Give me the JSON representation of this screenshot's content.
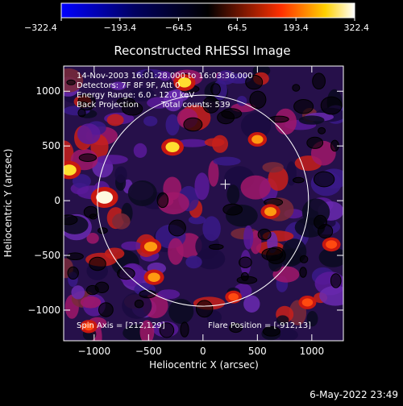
{
  "chart_data": {
    "type": "heatmap",
    "title": "Reconstructed RHESSI Image",
    "xlabel": "Heliocentric X (arcsec)",
    "ylabel": "Heliocentric Y (arcsec)",
    "xlim": [
      -1280,
      1290
    ],
    "ylim": [
      -1280,
      1230
    ],
    "x_ticks": [
      -1000,
      -500,
      0,
      500,
      1000
    ],
    "y_ticks": [
      -1000,
      -500,
      0,
      500,
      1000
    ],
    "x_tick_labels": [
      "−1000",
      "−500",
      "0",
      "500",
      "1000"
    ],
    "y_tick_labels": [
      "−1000",
      "−500",
      "0",
      "500",
      "1000"
    ],
    "colorbar": {
      "min": -322.4,
      "max": 322.4,
      "ticks": [
        -322.4,
        -193.4,
        -64.5,
        64.5,
        193.4,
        322.4
      ],
      "tick_labels": [
        "−322.4",
        "−193.4",
        "−64.5",
        "64.5",
        "193.4",
        "322.4"
      ],
      "colors": [
        "#0000ff",
        "#000000",
        "#ff2000",
        "#ffd800",
        "#ffffff"
      ]
    },
    "solar_limb": {
      "center": [
        0,
        0
      ],
      "radius": 970
    },
    "flare_marker": [
      205,
      150
    ],
    "bright_sources": [
      {
        "x": -905,
        "y": 30,
        "value": 322
      },
      {
        "x": -1230,
        "y": 280,
        "value": 260
      },
      {
        "x": -280,
        "y": 490,
        "value": 240
      },
      {
        "x": -170,
        "y": 1080,
        "value": 230
      },
      {
        "x": -480,
        "y": -420,
        "value": 220
      },
      {
        "x": -450,
        "y": -700,
        "value": 200
      },
      {
        "x": 620,
        "y": -100,
        "value": 190
      },
      {
        "x": 500,
        "y": 560,
        "value": 180
      },
      {
        "x": 1180,
        "y": -400,
        "value": 170
      },
      {
        "x": 960,
        "y": -930,
        "value": 160
      },
      {
        "x": -1050,
        "y": -1150,
        "value": 150
      },
      {
        "x": 280,
        "y": -880,
        "value": 140
      }
    ],
    "annotations": {
      "time_range": "14-Nov-2003 16:01:28.000 to 16:03:36.000",
      "detectors": "Detectors: 7F 8F 9F, Att 0",
      "energy_range": "Energy Range: 6.0 - 12.0 keV",
      "method": "Back Projection",
      "total_counts": "Total counts: 539",
      "spin_axis": "Spin Axis = [212,129]",
      "flare_position": "Flare Position = [-912,13]"
    }
  },
  "timestamp": "6-May-2022 23:49"
}
